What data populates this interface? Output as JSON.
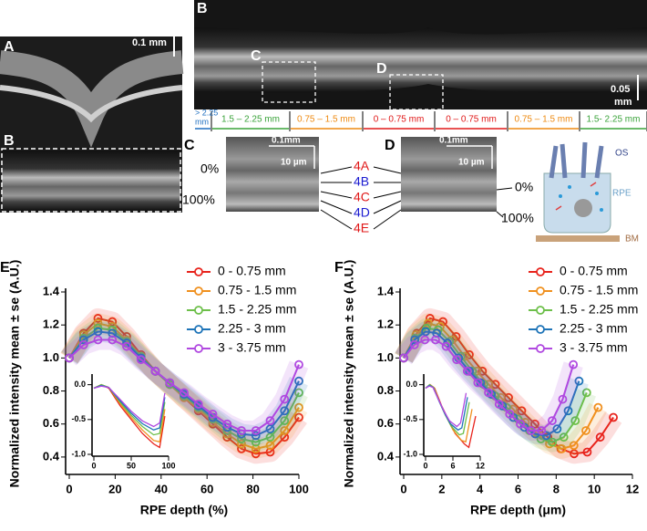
{
  "panels": {
    "a": {
      "label": "A",
      "scale": "0.1 mm",
      "zoom_label": "B"
    },
    "b": {
      "label": "B",
      "roi_c": "C",
      "roi_d": "D",
      "scale": [
        "0.05",
        "mm"
      ],
      "zones": [
        {
          "text": [
            "> 2.25",
            "mm"
          ],
          "color": "#1f6fc0"
        },
        {
          "text": "1.5 – 2.25 mm",
          "color": "#3aa33a"
        },
        {
          "text": "0.75 – 1.5 mm",
          "color": "#ee8a12"
        },
        {
          "text": "0 – 0.75 mm",
          "color": "#e01818"
        },
        {
          "text": "0 – 0.75 mm",
          "color": "#e01818"
        },
        {
          "text": "0.75 – 1.5 mm",
          "color": "#ee8a12"
        },
        {
          "text": "1.5- 2.25 mm",
          "color": "#3aa33a"
        }
      ]
    },
    "c": {
      "label": "C",
      "scale_x": "0.1mm",
      "scale_y": "10 µm",
      "top": "0%",
      "bottom": "100%",
      "layers": [
        {
          "text": "4A",
          "color": "#e01818"
        },
        {
          "text": "4B",
          "color": "#1a1ad0"
        },
        {
          "text": "4C",
          "color": "#e01818"
        },
        {
          "text": "4D",
          "color": "#1a1ad0"
        },
        {
          "text": "4E",
          "color": "#e01818"
        }
      ]
    },
    "d": {
      "label": "D",
      "scale_x": "0.1mm",
      "scale_y": "10 µm",
      "top": "0%",
      "bottom": "100%",
      "os": "OS",
      "rpe": "RPE",
      "bm": "BM"
    }
  },
  "chart_data": [
    {
      "type": "line",
      "panel_label": "E",
      "y_label": "Normalized intensity mean ± se (A.U.)",
      "x_label": "RPE depth (%)",
      "xlim": [
        0,
        100
      ],
      "xticks": [
        0,
        20,
        40,
        60,
        80,
        100
      ],
      "ylim": [
        0.3,
        1.4
      ],
      "yticks": [
        0.4,
        0.6,
        0.8,
        {
          "value": 1.0,
          "label": "1.0"
        },
        1.2,
        1.4
      ],
      "x": [
        0,
        6.25,
        12.5,
        18.75,
        25,
        31.25,
        37.5,
        43.75,
        50,
        56.25,
        62.5,
        68.75,
        75,
        81.25,
        87.5,
        93.75,
        100
      ],
      "series": [
        {
          "name": "0 - 0.75 mm",
          "color": "#e8231c",
          "values": [
            1.0,
            1.15,
            1.24,
            1.22,
            1.13,
            1.02,
            0.92,
            0.84,
            0.76,
            0.68,
            0.6,
            0.52,
            0.45,
            0.42,
            0.43,
            0.52,
            0.64
          ]
        },
        {
          "name": "0.75 - 1.5 mm",
          "color": "#f0901e",
          "values": [
            1.0,
            1.14,
            1.21,
            1.19,
            1.11,
            1.01,
            0.92,
            0.84,
            0.76,
            0.69,
            0.61,
            0.54,
            0.48,
            0.45,
            0.47,
            0.56,
            0.7
          ]
        },
        {
          "name": "1.5 - 2.25 mm",
          "color": "#6dbf4a",
          "values": [
            1.0,
            1.12,
            1.18,
            1.17,
            1.1,
            1.01,
            0.92,
            0.84,
            0.77,
            0.7,
            0.63,
            0.56,
            0.51,
            0.49,
            0.52,
            0.62,
            0.79
          ]
        },
        {
          "name": "2.25 - 3 mm",
          "color": "#1e74b8",
          "values": [
            1.0,
            1.11,
            1.16,
            1.15,
            1.09,
            1.0,
            0.92,
            0.85,
            0.78,
            0.71,
            0.64,
            0.58,
            0.54,
            0.53,
            0.57,
            0.68,
            0.86
          ]
        },
        {
          "name": "3 - 3.75 mm",
          "color": "#b048e0",
          "values": [
            1.0,
            1.08,
            1.11,
            1.11,
            1.07,
            0.99,
            0.92,
            0.85,
            0.79,
            0.72,
            0.66,
            0.6,
            0.56,
            0.56,
            0.62,
            0.75,
            0.96
          ]
        }
      ],
      "inset": {
        "xlim": [
          0,
          100
        ],
        "xticks": [
          0,
          50,
          100
        ],
        "ylim": [
          -1.0,
          0.1
        ],
        "yticks": [
          {
            "value": 0,
            "label": "0.0"
          },
          -0.5,
          {
            "value": -1,
            "label": "-1.0"
          }
        ],
        "x": [
          0,
          10,
          20,
          35,
          50,
          65,
          80,
          88,
          95
        ],
        "series": [
          {
            "color": "#e8231c",
            "values": [
              -0.05,
              0.0,
              -0.05,
              -0.3,
              -0.5,
              -0.7,
              -0.85,
              -0.9,
              -0.45
            ]
          },
          {
            "color": "#f0901e",
            "values": [
              -0.05,
              0.0,
              -0.04,
              -0.27,
              -0.47,
              -0.65,
              -0.8,
              -0.82,
              -0.35
            ]
          },
          {
            "color": "#6dbf4a",
            "values": [
              -0.05,
              0.0,
              -0.04,
              -0.25,
              -0.44,
              -0.6,
              -0.72,
              -0.7,
              -0.25
            ]
          },
          {
            "color": "#1e74b8",
            "values": [
              -0.05,
              -0.01,
              -0.04,
              -0.23,
              -0.41,
              -0.56,
              -0.65,
              -0.62,
              -0.18
            ]
          },
          {
            "color": "#b048e0",
            "values": [
              -0.05,
              -0.02,
              -0.04,
              -0.21,
              -0.38,
              -0.52,
              -0.6,
              -0.55,
              -0.12
            ]
          }
        ]
      }
    },
    {
      "type": "line",
      "panel_label": "F",
      "y_label": "Normalized intensity mean ± se (A.U.)",
      "x_label": "RPE depth (μm)",
      "xlim": [
        0,
        12
      ],
      "xticks": [
        0,
        2,
        4,
        6,
        8,
        10,
        12
      ],
      "ylim": [
        0.3,
        1.4
      ],
      "yticks": [
        0.4,
        0.6,
        0.8,
        {
          "value": 1.0,
          "label": "1.0"
        },
        1.2,
        1.4
      ],
      "series": [
        {
          "name": "0 - 0.75 mm",
          "color": "#e8231c",
          "x": [
            0,
            0.69,
            1.38,
            2.06,
            2.75,
            3.44,
            4.13,
            4.81,
            5.5,
            6.19,
            6.88,
            7.56,
            8.25,
            8.94,
            9.63,
            10.31,
            11
          ],
          "values": [
            1.0,
            1.15,
            1.24,
            1.22,
            1.13,
            1.02,
            0.92,
            0.84,
            0.76,
            0.68,
            0.6,
            0.52,
            0.45,
            0.42,
            0.43,
            0.52,
            0.64
          ]
        },
        {
          "name": "0.75 - 1.5 mm",
          "color": "#f0901e",
          "x": [
            0,
            0.64,
            1.28,
            1.91,
            2.55,
            3.19,
            3.83,
            4.46,
            5.1,
            5.74,
            6.38,
            7.01,
            7.65,
            8.29,
            8.93,
            9.56,
            10.2
          ],
          "values": [
            1.0,
            1.14,
            1.21,
            1.19,
            1.11,
            1.01,
            0.92,
            0.84,
            0.76,
            0.69,
            0.61,
            0.54,
            0.48,
            0.45,
            0.47,
            0.56,
            0.7
          ]
        },
        {
          "name": "1.5 - 2.25 mm",
          "color": "#6dbf4a",
          "x": [
            0,
            0.6,
            1.2,
            1.8,
            2.4,
            3,
            3.6,
            4.2,
            4.8,
            5.4,
            6,
            6.6,
            7.2,
            7.8,
            8.4,
            9,
            9.6
          ],
          "values": [
            1.0,
            1.12,
            1.18,
            1.17,
            1.1,
            1.01,
            0.92,
            0.84,
            0.77,
            0.7,
            0.63,
            0.56,
            0.51,
            0.49,
            0.52,
            0.62,
            0.79
          ]
        },
        {
          "name": "2.25 - 3 mm",
          "color": "#1e74b8",
          "x": [
            0,
            0.58,
            1.15,
            1.73,
            2.3,
            2.88,
            3.45,
            4.03,
            4.6,
            5.18,
            5.75,
            6.33,
            6.9,
            7.48,
            8.05,
            8.63,
            9.2
          ],
          "values": [
            1.0,
            1.11,
            1.16,
            1.15,
            1.09,
            1.0,
            0.92,
            0.85,
            0.78,
            0.71,
            0.64,
            0.58,
            0.54,
            0.53,
            0.57,
            0.68,
            0.86
          ]
        },
        {
          "name": "3 - 3.75 mm",
          "color": "#b048e0",
          "x": [
            0,
            0.56,
            1.11,
            1.67,
            2.23,
            2.78,
            3.34,
            3.89,
            4.45,
            5.01,
            5.56,
            6.12,
            6.68,
            7.23,
            7.79,
            8.34,
            8.9
          ],
          "values": [
            1.0,
            1.08,
            1.11,
            1.11,
            1.07,
            0.99,
            0.92,
            0.85,
            0.79,
            0.72,
            0.66,
            0.6,
            0.56,
            0.56,
            0.62,
            0.75,
            0.96
          ]
        }
      ],
      "inset": {
        "xlim": [
          0,
          12
        ],
        "xticks": [
          0,
          6,
          12
        ],
        "ylim": [
          -1.0,
          0.1
        ],
        "yticks": [
          {
            "value": 0,
            "label": "0.0"
          },
          -0.5,
          {
            "value": -1,
            "label": "-1.0"
          }
        ],
        "series": [
          {
            "color": "#e8231c",
            "x": [
              0,
              1,
              2,
              3.5,
              5,
              6.5,
              8.5,
              9.5,
              11
            ],
            "values": [
              -0.05,
              0.0,
              -0.05,
              -0.3,
              -0.5,
              -0.7,
              -0.85,
              -0.9,
              -0.45
            ]
          },
          {
            "color": "#f0901e",
            "x": [
              0,
              0.93,
              1.85,
              3.24,
              4.64,
              6.03,
              7.88,
              8.81,
              10.2
            ],
            "values": [
              -0.05,
              0.0,
              -0.04,
              -0.27,
              -0.47,
              -0.65,
              -0.8,
              -0.82,
              -0.35
            ]
          },
          {
            "color": "#6dbf4a",
            "x": [
              0,
              0.87,
              1.75,
              3.05,
              4.36,
              5.67,
              7.42,
              8.29,
              9.6
            ],
            "values": [
              -0.05,
              0.0,
              -0.04,
              -0.25,
              -0.44,
              -0.6,
              -0.72,
              -0.7,
              -0.25
            ]
          },
          {
            "color": "#1e74b8",
            "x": [
              0,
              0.84,
              1.67,
              2.93,
              4.18,
              5.44,
              7.11,
              7.95,
              9.2
            ],
            "values": [
              -0.05,
              -0.01,
              -0.04,
              -0.23,
              -0.41,
              -0.56,
              -0.65,
              -0.62,
              -0.18
            ]
          },
          {
            "color": "#b048e0",
            "x": [
              0,
              0.81,
              1.62,
              2.83,
              4.05,
              5.26,
              6.88,
              7.69,
              8.9
            ],
            "values": [
              -0.05,
              -0.02,
              -0.04,
              -0.21,
              -0.38,
              -0.52,
              -0.6,
              -0.55,
              -0.12
            ]
          }
        ]
      }
    }
  ]
}
